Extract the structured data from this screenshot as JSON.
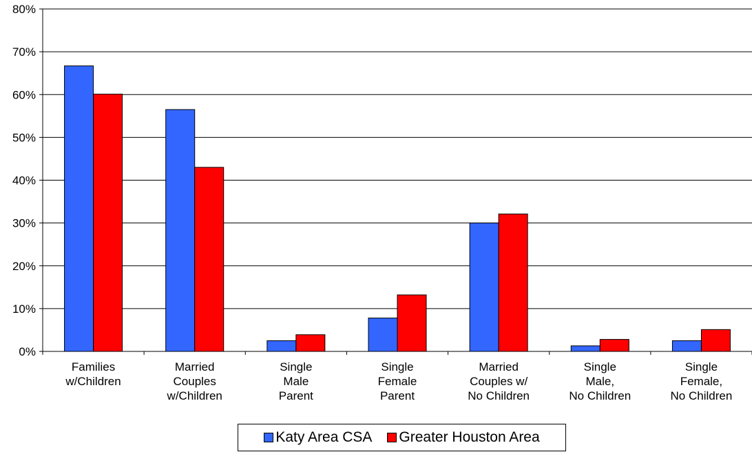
{
  "chart_data": {
    "type": "bar",
    "categories": [
      [
        "Families",
        "w/Children"
      ],
      [
        "Married",
        "Couples",
        "w/Children"
      ],
      [
        "Single",
        "Male",
        "Parent"
      ],
      [
        "Single",
        "Female",
        "Parent"
      ],
      [
        "Married",
        "Couples w/",
        "No Children"
      ],
      [
        "Single",
        "Male,",
        "No Children"
      ],
      [
        "Single",
        "Female,",
        "No Children"
      ]
    ],
    "series": [
      {
        "name": "Katy Area CSA",
        "color": "#3366ff",
        "values": [
          66.7,
          56.5,
          2.5,
          7.8,
          30.0,
          1.3,
          2.5
        ]
      },
      {
        "name": "Greater Houston Area",
        "color": "#ff0000",
        "values": [
          60.1,
          43.0,
          3.9,
          13.2,
          32.1,
          2.8,
          5.1
        ]
      }
    ],
    "yticks": [
      "0%",
      "10%",
      "20%",
      "30%",
      "40%",
      "50%",
      "60%",
      "70%",
      "80%"
    ],
    "ylim": [
      0,
      80
    ],
    "grid": true,
    "legend_position": "bottom"
  }
}
